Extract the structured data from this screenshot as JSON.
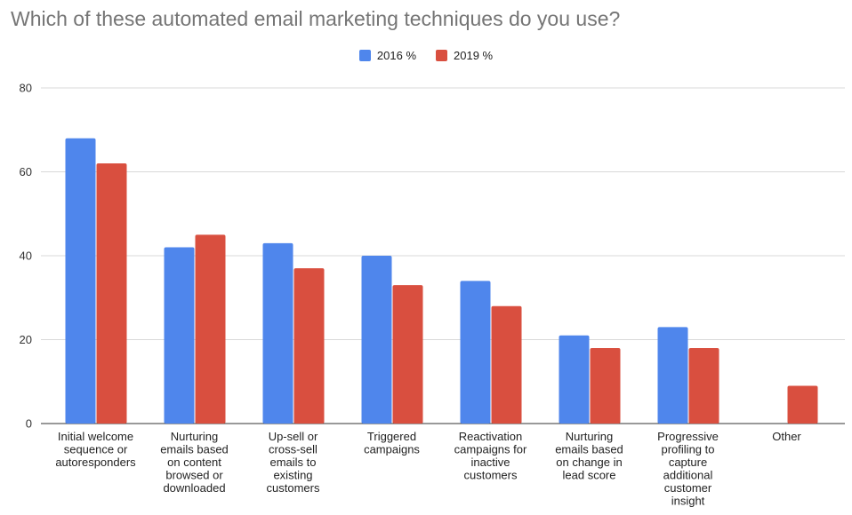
{
  "chart_data": {
    "type": "bar",
    "title": "Which of these automated email marketing techniques do you use?",
    "ylim": [
      0,
      80
    ],
    "yticks": [
      0,
      20,
      40,
      60,
      80
    ],
    "grid": true,
    "legend_position": "top-center",
    "categories": [
      [
        "Initial welcome",
        "sequence or",
        "autoresponders"
      ],
      [
        "Nurturing",
        "emails based",
        "on content",
        "browsed or",
        "downloaded"
      ],
      [
        "Up-sell or",
        "cross-sell",
        "emails to",
        "existing",
        "customers"
      ],
      [
        "Triggered",
        "campaigns"
      ],
      [
        "Reactivation",
        "campaigns for",
        "inactive",
        "customers"
      ],
      [
        "Nurturing",
        "emails based",
        "on change in",
        "lead score"
      ],
      [
        "Progressive",
        "profiling to",
        "capture",
        "additional",
        "customer",
        "insight"
      ],
      [
        "Other"
      ]
    ],
    "series": [
      {
        "name": "2016 %",
        "color": "#4f86ec",
        "values": [
          68,
          42,
          43,
          40,
          34,
          21,
          23,
          null
        ]
      },
      {
        "name": "2019 %",
        "color": "#d94f3f",
        "values": [
          62,
          45,
          37,
          33,
          28,
          18,
          18,
          9
        ]
      }
    ]
  }
}
